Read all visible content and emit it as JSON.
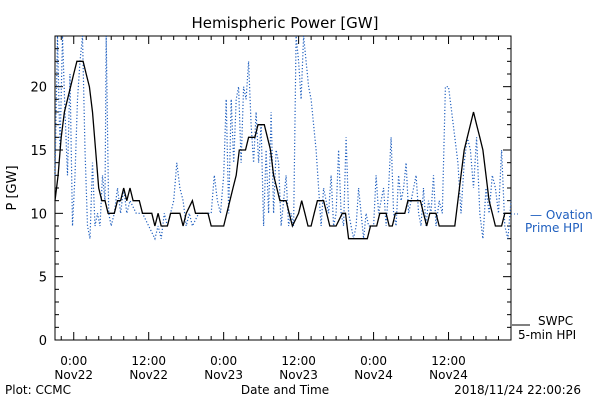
{
  "chart_data": {
    "type": "line",
    "title": "Hemispheric Power [GW]",
    "ylabel": "P [GW]",
    "xlabel": "Date and Time",
    "ylim": [
      0,
      24
    ],
    "xlim_hours": [
      -3,
      70
    ],
    "y_ticks": [
      0,
      5,
      10,
      15,
      20
    ],
    "x_ticks": [
      {
        "hour": 0,
        "line1": "0:00",
        "line2": "Nov22"
      },
      {
        "hour": 12,
        "line1": "12:00",
        "line2": "Nov22"
      },
      {
        "hour": 24,
        "line1": "0:00",
        "line2": "Nov23"
      },
      {
        "hour": 36,
        "line1": "12:00",
        "line2": "Nov23"
      },
      {
        "hour": 48,
        "line1": "0:00",
        "line2": "Nov24"
      },
      {
        "hour": 60,
        "line1": "12:00",
        "line2": "Nov24"
      }
    ],
    "x_units": "hours since Nov22 0:00",
    "series": [
      {
        "name": "SWPC 5-min HPI",
        "color": "#000000",
        "style": "solid",
        "legend_lines": [
          "SWPC",
          "5-min HPI"
        ],
        "points": [
          [
            -3,
            11
          ],
          [
            -2.5,
            13
          ],
          [
            -2,
            16
          ],
          [
            -1.5,
            18
          ],
          [
            -1,
            19
          ],
          [
            -0.5,
            20
          ],
          [
            0,
            21
          ],
          [
            0.5,
            22
          ],
          [
            1.5,
            22
          ],
          [
            2,
            21
          ],
          [
            2.5,
            20
          ],
          [
            3,
            18
          ],
          [
            3.5,
            15
          ],
          [
            4,
            12
          ],
          [
            4.5,
            11
          ],
          [
            5,
            11
          ],
          [
            5.5,
            10
          ],
          [
            6.5,
            10
          ],
          [
            7,
            11
          ],
          [
            7.5,
            11
          ],
          [
            8,
            12
          ],
          [
            8.5,
            11
          ],
          [
            9,
            12
          ],
          [
            9.5,
            11
          ],
          [
            10.5,
            11
          ],
          [
            11,
            10
          ],
          [
            12.5,
            10
          ],
          [
            13,
            9
          ],
          [
            13.5,
            10
          ],
          [
            14,
            9
          ],
          [
            15,
            9
          ],
          [
            15.5,
            10
          ],
          [
            17,
            10
          ],
          [
            17.5,
            9
          ],
          [
            18,
            10
          ],
          [
            19,
            11
          ],
          [
            19.5,
            10
          ],
          [
            21.5,
            10
          ],
          [
            22,
            9
          ],
          [
            24,
            9
          ],
          [
            24.5,
            10
          ],
          [
            25,
            11
          ],
          [
            25.5,
            12
          ],
          [
            26,
            13
          ],
          [
            26.5,
            15
          ],
          [
            27.5,
            15
          ],
          [
            28,
            16
          ],
          [
            29,
            16
          ],
          [
            29.5,
            17
          ],
          [
            30.5,
            17
          ],
          [
            31,
            16
          ],
          [
            31.5,
            15
          ],
          [
            32,
            13
          ],
          [
            32.5,
            12
          ],
          [
            33,
            11
          ],
          [
            34,
            11
          ],
          [
            34.5,
            10
          ],
          [
            35,
            9
          ],
          [
            36,
            10
          ],
          [
            36.5,
            11
          ],
          [
            37,
            10
          ],
          [
            37.5,
            9
          ],
          [
            38,
            9
          ],
          [
            38.5,
            10
          ],
          [
            39,
            11
          ],
          [
            40,
            11
          ],
          [
            40.5,
            10
          ],
          [
            41,
            9
          ],
          [
            42,
            9
          ],
          [
            43,
            10
          ],
          [
            43.5,
            10
          ],
          [
            44,
            8
          ],
          [
            47,
            8
          ],
          [
            47.5,
            9
          ],
          [
            48.5,
            9
          ],
          [
            49,
            10
          ],
          [
            50,
            10
          ],
          [
            50.5,
            9
          ],
          [
            51,
            9
          ],
          [
            51.5,
            10
          ],
          [
            53,
            10
          ],
          [
            53.5,
            11
          ],
          [
            55.5,
            11
          ],
          [
            56,
            10
          ],
          [
            56.5,
            9
          ],
          [
            57,
            10
          ],
          [
            58,
            10
          ],
          [
            58.5,
            9
          ],
          [
            61,
            9
          ],
          [
            61.5,
            11
          ],
          [
            62,
            13
          ],
          [
            62.5,
            15
          ],
          [
            63,
            16
          ],
          [
            63.5,
            17
          ],
          [
            64,
            18
          ],
          [
            64.5,
            17
          ],
          [
            65,
            16
          ],
          [
            65.5,
            15
          ],
          [
            66,
            13
          ],
          [
            66.5,
            11
          ],
          [
            67,
            10
          ],
          [
            67.5,
            9
          ],
          [
            68.5,
            9
          ],
          [
            69,
            10
          ],
          [
            70,
            10
          ]
        ]
      },
      {
        "name": "Ovation Prime HPI",
        "color": "#1f5fbf",
        "style": "dotted",
        "legend_lines": [
          "— Ovation",
          "Prime HPI"
        ],
        "points": [
          [
            -3,
            13
          ],
          [
            -2.6,
            24
          ],
          [
            -2.2,
            15
          ],
          [
            -1.8,
            24
          ],
          [
            -1.4,
            18
          ],
          [
            -1,
            13
          ],
          [
            -0.6,
            21
          ],
          [
            -0.2,
            9
          ],
          [
            0.2,
            13
          ],
          [
            0.6,
            19
          ],
          [
            1,
            22
          ],
          [
            1.4,
            24
          ],
          [
            1.8,
            15
          ],
          [
            2.2,
            9
          ],
          [
            2.6,
            8
          ],
          [
            3,
            14
          ],
          [
            3.4,
            9
          ],
          [
            3.8,
            10
          ],
          [
            4.2,
            9
          ],
          [
            4.6,
            13
          ],
          [
            5,
            11
          ],
          [
            5.2,
            24
          ],
          [
            5.6,
            10
          ],
          [
            6,
            9
          ],
          [
            6.5,
            10
          ],
          [
            7,
            12
          ],
          [
            7.5,
            10
          ],
          [
            8,
            12
          ],
          [
            8.5,
            10
          ],
          [
            9,
            11
          ],
          [
            10,
            10
          ],
          [
            11,
            10
          ],
          [
            12,
            9
          ],
          [
            13,
            8
          ],
          [
            13.5,
            9
          ],
          [
            14,
            8
          ],
          [
            14.5,
            10
          ],
          [
            15,
            9
          ],
          [
            16,
            11
          ],
          [
            16.5,
            14
          ],
          [
            17,
            12
          ],
          [
            17.5,
            11
          ],
          [
            18,
            9
          ],
          [
            18.5,
            10
          ],
          [
            19,
            9
          ],
          [
            20,
            10
          ],
          [
            21,
            10
          ],
          [
            22,
            10
          ],
          [
            22.5,
            13
          ],
          [
            23,
            11
          ],
          [
            23.5,
            10
          ],
          [
            24,
            13
          ],
          [
            24.4,
            19
          ],
          [
            24.8,
            10
          ],
          [
            25.2,
            19
          ],
          [
            25.6,
            14
          ],
          [
            26,
            19
          ],
          [
            26.4,
            20
          ],
          [
            26.8,
            14
          ],
          [
            27.2,
            20
          ],
          [
            27.6,
            19
          ],
          [
            28,
            22
          ],
          [
            28.4,
            17
          ],
          [
            28.8,
            14
          ],
          [
            29.2,
            18
          ],
          [
            29.6,
            14
          ],
          [
            30,
            17
          ],
          [
            30.4,
            9
          ],
          [
            30.8,
            15
          ],
          [
            31.2,
            10
          ],
          [
            31.6,
            18
          ],
          [
            32,
            10
          ],
          [
            32.4,
            15
          ],
          [
            32.8,
            14
          ],
          [
            33.2,
            9
          ],
          [
            33.6,
            11
          ],
          [
            34,
            13
          ],
          [
            34.4,
            9
          ],
          [
            34.8,
            10
          ],
          [
            35.2,
            9
          ],
          [
            35.6,
            24
          ],
          [
            36,
            22
          ],
          [
            36.4,
            19
          ],
          [
            36.8,
            24
          ],
          [
            37.2,
            22
          ],
          [
            37.6,
            20
          ],
          [
            38,
            19
          ],
          [
            38.4,
            17
          ],
          [
            38.8,
            15
          ],
          [
            39.2,
            12
          ],
          [
            39.6,
            9
          ],
          [
            40,
            12
          ],
          [
            40.4,
            11
          ],
          [
            40.8,
            10
          ],
          [
            41.2,
            13
          ],
          [
            41.6,
            9
          ],
          [
            42,
            10
          ],
          [
            42.4,
            15
          ],
          [
            42.8,
            10
          ],
          [
            43.2,
            9
          ],
          [
            43.6,
            16
          ],
          [
            44,
            10
          ],
          [
            44.4,
            9
          ],
          [
            44.8,
            8
          ],
          [
            45.2,
            9
          ],
          [
            45.6,
            12
          ],
          [
            46,
            10
          ],
          [
            46.4,
            8
          ],
          [
            46.8,
            10
          ],
          [
            47.2,
            9
          ],
          [
            47.6,
            9
          ],
          [
            48,
            9
          ],
          [
            48.4,
            13
          ],
          [
            48.8,
            10
          ],
          [
            49.2,
            11
          ],
          [
            49.6,
            12
          ],
          [
            50,
            9
          ],
          [
            50.4,
            12
          ],
          [
            50.8,
            16
          ],
          [
            51.2,
            10
          ],
          [
            51.6,
            9
          ],
          [
            52,
            13
          ],
          [
            52.4,
            11
          ],
          [
            52.8,
            12
          ],
          [
            53.2,
            14
          ],
          [
            53.6,
            10
          ],
          [
            54,
            11
          ],
          [
            54.4,
            12
          ],
          [
            54.8,
            13
          ],
          [
            55.2,
            10
          ],
          [
            55.6,
            9
          ],
          [
            56,
            12
          ],
          [
            56.4,
            9
          ],
          [
            56.8,
            11
          ],
          [
            57.2,
            10
          ],
          [
            57.6,
            13
          ],
          [
            58,
            9
          ],
          [
            58.5,
            11
          ],
          [
            59,
            10
          ],
          [
            59.5,
            20
          ],
          [
            60,
            20
          ],
          [
            60.5,
            18
          ],
          [
            61,
            16
          ],
          [
            61.5,
            14
          ],
          [
            62,
            10
          ],
          [
            62.5,
            14
          ],
          [
            63,
            16
          ],
          [
            63.5,
            15
          ],
          [
            64,
            12
          ],
          [
            64.5,
            16
          ],
          [
            65,
            10
          ],
          [
            65.5,
            8
          ],
          [
            66,
            12
          ],
          [
            66.5,
            10
          ],
          [
            67,
            13
          ],
          [
            67.5,
            12
          ],
          [
            68,
            10
          ],
          [
            68.5,
            15
          ],
          [
            69,
            9
          ],
          [
            69.5,
            8
          ],
          [
            70,
            11
          ]
        ]
      }
    ],
    "grid": false,
    "legend_position": "right"
  },
  "footer": {
    "left": "Plot: CCMC",
    "center": "Date and Time",
    "right": "2018/11/24 22:00:26"
  },
  "legend": {
    "ovation_line1": "— Ovation",
    "ovation_line2": "Prime HPI",
    "swpc_line1": "SWPC",
    "swpc_line2": "5-min HPI"
  }
}
